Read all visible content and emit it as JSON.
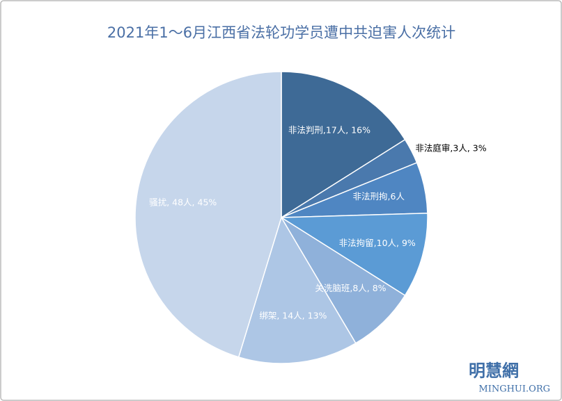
{
  "chart_data": {
    "type": "pie",
    "title": "2021年1～6月江西省法轮功学员遭中共迫害人次统计",
    "values": [
      17,
      3,
      6,
      10,
      8,
      14,
      48
    ],
    "value_labels": [
      "非法判刑,17人, 16%",
      "非法庭审,3人, 3%",
      "非法刑拘,6人",
      "非法拘留,10人, 9%",
      "关洗脑班,8人, 8%",
      "绑架, 14人, 13%",
      "骚扰, 48人, 45%"
    ],
    "colors": [
      "#3e6a96",
      "#4a79ad",
      "#4f86c2",
      "#5b9bd5",
      "#8fb1da",
      "#adc6e5",
      "#c6d6eb"
    ],
    "outside_labels": [
      1
    ]
  },
  "watermark": {
    "name": "明慧網",
    "site": "MINGHUI.ORG"
  }
}
